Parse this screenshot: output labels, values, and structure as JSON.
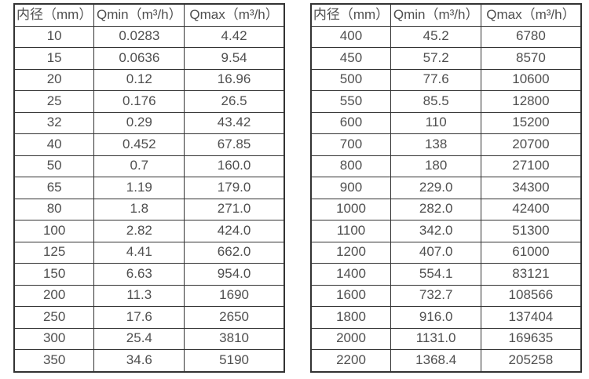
{
  "colors": {
    "background": "#ffffff",
    "border": "#333333",
    "text": "#4f4f4f"
  },
  "chart_data": [
    {
      "type": "table",
      "title": "",
      "columns": [
        "内径（mm）",
        "Qmin（m³/h）",
        "Qmax（m³/h）"
      ],
      "rows": [
        [
          "10",
          "0.0283",
          "4.42"
        ],
        [
          "15",
          "0.0636",
          "9.54"
        ],
        [
          "20",
          "0.12",
          "16.96"
        ],
        [
          "25",
          "0.176",
          "26.5"
        ],
        [
          "32",
          "0.29",
          "43.42"
        ],
        [
          "40",
          "0.452",
          "67.85"
        ],
        [
          "50",
          "0.7",
          "160.0"
        ],
        [
          "65",
          "1.19",
          "179.0"
        ],
        [
          "80",
          "1.8",
          "271.0"
        ],
        [
          "100",
          "2.82",
          "424.0"
        ],
        [
          "125",
          "4.41",
          "662.0"
        ],
        [
          "150",
          "6.63",
          "954.0"
        ],
        [
          "200",
          "11.3",
          "1690"
        ],
        [
          "250",
          "17.6",
          "2650"
        ],
        [
          "300",
          "25.4",
          "3810"
        ],
        [
          "350",
          "34.6",
          "5190"
        ]
      ]
    },
    {
      "type": "table",
      "title": "",
      "columns": [
        "内径（mm）",
        "Qmin（m³/h）",
        "Qmax（m³/h）"
      ],
      "rows": [
        [
          "400",
          "45.2",
          "6780"
        ],
        [
          "450",
          "57.2",
          "8570"
        ],
        [
          "500",
          "77.6",
          "10600"
        ],
        [
          "550",
          "85.5",
          "12800"
        ],
        [
          "600",
          "110",
          "15200"
        ],
        [
          "700",
          "138",
          "20700"
        ],
        [
          "800",
          "180",
          "27100"
        ],
        [
          "900",
          "229.0",
          "34300"
        ],
        [
          "1000",
          "282.0",
          "42400"
        ],
        [
          "1100",
          "342.0",
          "51300"
        ],
        [
          "1200",
          "407.0",
          "61000"
        ],
        [
          "1400",
          "554.1",
          "83121"
        ],
        [
          "1600",
          "732.7",
          "108566"
        ],
        [
          "1800",
          "916.0",
          "137404"
        ],
        [
          "2000",
          "1131.0",
          "169635"
        ],
        [
          "2200",
          "1368.4",
          "205258"
        ]
      ]
    }
  ]
}
